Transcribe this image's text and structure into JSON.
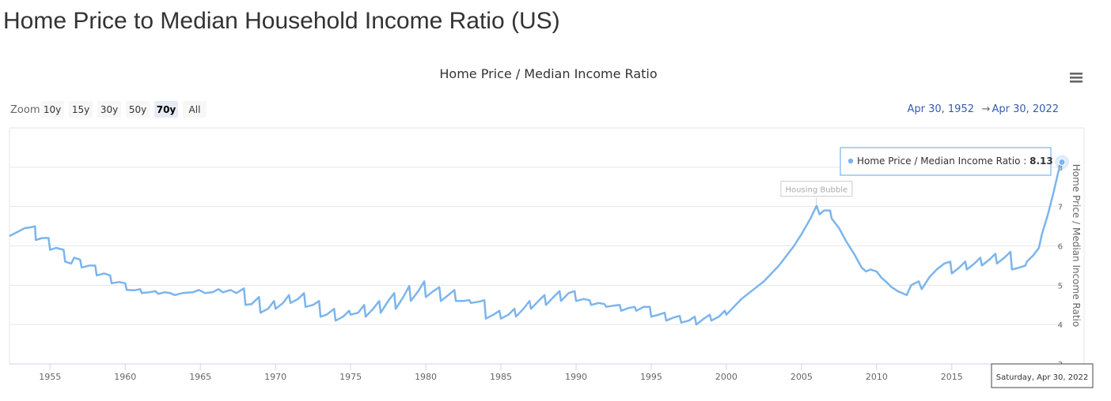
{
  "page": {
    "title": "Home Price to Median Household Income Ratio (US)"
  },
  "toolbar": {
    "zoom_label": "Zoom",
    "zoom_buttons": [
      "10y",
      "15y",
      "30y",
      "50y",
      "70y",
      "All"
    ],
    "selected_zoom": "70y",
    "range_from": "Apr 30, 1952",
    "range_arrow": "→",
    "range_to": "Apr 30, 2022",
    "menu_icon": "hamburger-menu-icon"
  },
  "tooltip": {
    "series_name": "Home Price / Median Income Ratio",
    "value": "8.13",
    "date_label": "Saturday, Apr 30, 2022"
  },
  "colors": {
    "line": "#7cb5ec",
    "range_text": "#335cad",
    "grid": "#e6e6e6"
  },
  "chart_data": {
    "type": "line",
    "title": "Home Price / Median Income Ratio",
    "ylabel": "Home Price / Median Income Ratio",
    "xlabel": "",
    "xlim": [
      1952.3,
      2022.33
    ],
    "ylim": [
      3,
      9
    ],
    "x_ticks": [
      1955,
      1960,
      1965,
      1970,
      1975,
      1980,
      1985,
      1990,
      1995,
      2000,
      2005,
      2010,
      2015
    ],
    "y_ticks": [
      3,
      4,
      5,
      6,
      7,
      8
    ],
    "grid": true,
    "legend": "none",
    "annotations": [
      {
        "text": "Housing Bubble",
        "x": 2006.0,
        "y": 7.02
      }
    ],
    "series": [
      {
        "name": "Home Price / Median Income Ratio",
        "points": [
          [
            1952.3,
            6.25
          ],
          [
            1952.8,
            6.35
          ],
          [
            1953.3,
            6.45
          ],
          [
            1953.8,
            6.48
          ],
          [
            1954.0,
            6.5
          ],
          [
            1954.05,
            6.15
          ],
          [
            1954.5,
            6.2
          ],
          [
            1954.9,
            6.2
          ],
          [
            1955.0,
            5.9
          ],
          [
            1955.4,
            5.95
          ],
          [
            1955.9,
            5.9
          ],
          [
            1956.0,
            5.6
          ],
          [
            1956.4,
            5.55
          ],
          [
            1956.6,
            5.7
          ],
          [
            1957.0,
            5.65
          ],
          [
            1957.1,
            5.45
          ],
          [
            1957.6,
            5.5
          ],
          [
            1958.0,
            5.5
          ],
          [
            1958.1,
            5.25
          ],
          [
            1958.6,
            5.3
          ],
          [
            1959.0,
            5.25
          ],
          [
            1959.1,
            5.05
          ],
          [
            1959.6,
            5.08
          ],
          [
            1960.0,
            5.05
          ],
          [
            1960.1,
            4.88
          ],
          [
            1960.6,
            4.87
          ],
          [
            1961.0,
            4.9
          ],
          [
            1961.1,
            4.8
          ],
          [
            1961.6,
            4.82
          ],
          [
            1962.0,
            4.85
          ],
          [
            1962.2,
            4.78
          ],
          [
            1962.6,
            4.82
          ],
          [
            1963.0,
            4.8
          ],
          [
            1963.3,
            4.75
          ],
          [
            1963.8,
            4.8
          ],
          [
            1964.5,
            4.82
          ],
          [
            1964.9,
            4.88
          ],
          [
            1965.3,
            4.8
          ],
          [
            1965.8,
            4.82
          ],
          [
            1966.2,
            4.9
          ],
          [
            1966.5,
            4.82
          ],
          [
            1967.0,
            4.88
          ],
          [
            1967.4,
            4.8
          ],
          [
            1967.9,
            4.92
          ],
          [
            1968.0,
            4.5
          ],
          [
            1968.4,
            4.52
          ],
          [
            1968.9,
            4.7
          ],
          [
            1969.0,
            4.3
          ],
          [
            1969.5,
            4.4
          ],
          [
            1969.9,
            4.6
          ],
          [
            1970.0,
            4.4
          ],
          [
            1970.5,
            4.55
          ],
          [
            1970.9,
            4.75
          ],
          [
            1971.0,
            4.55
          ],
          [
            1971.5,
            4.65
          ],
          [
            1971.9,
            4.8
          ],
          [
            1972.0,
            4.45
          ],
          [
            1972.5,
            4.5
          ],
          [
            1972.9,
            4.6
          ],
          [
            1973.0,
            4.2
          ],
          [
            1973.4,
            4.25
          ],
          [
            1973.9,
            4.4
          ],
          [
            1974.0,
            4.1
          ],
          [
            1974.5,
            4.2
          ],
          [
            1974.9,
            4.35
          ],
          [
            1975.0,
            4.25
          ],
          [
            1975.5,
            4.3
          ],
          [
            1975.9,
            4.5
          ],
          [
            1976.0,
            4.2
          ],
          [
            1976.5,
            4.4
          ],
          [
            1976.9,
            4.6
          ],
          [
            1977.0,
            4.3
          ],
          [
            1977.5,
            4.6
          ],
          [
            1977.9,
            4.8
          ],
          [
            1978.0,
            4.4
          ],
          [
            1978.5,
            4.7
          ],
          [
            1978.9,
            4.98
          ],
          [
            1979.0,
            4.6
          ],
          [
            1979.5,
            4.85
          ],
          [
            1979.9,
            5.1
          ],
          [
            1980.0,
            4.7
          ],
          [
            1980.5,
            4.85
          ],
          [
            1980.9,
            4.95
          ],
          [
            1981.0,
            4.6
          ],
          [
            1981.5,
            4.75
          ],
          [
            1981.9,
            4.88
          ],
          [
            1982.0,
            4.6
          ],
          [
            1982.5,
            4.6
          ],
          [
            1982.9,
            4.62
          ],
          [
            1983.0,
            4.55
          ],
          [
            1983.5,
            4.58
          ],
          [
            1983.9,
            4.62
          ],
          [
            1984.0,
            4.15
          ],
          [
            1984.5,
            4.25
          ],
          [
            1984.9,
            4.35
          ],
          [
            1985.0,
            4.15
          ],
          [
            1985.5,
            4.25
          ],
          [
            1985.9,
            4.4
          ],
          [
            1986.0,
            4.2
          ],
          [
            1986.5,
            4.4
          ],
          [
            1986.9,
            4.6
          ],
          [
            1987.0,
            4.4
          ],
          [
            1987.5,
            4.6
          ],
          [
            1987.9,
            4.75
          ],
          [
            1988.0,
            4.5
          ],
          [
            1988.5,
            4.7
          ],
          [
            1988.9,
            4.85
          ],
          [
            1989.0,
            4.6
          ],
          [
            1989.5,
            4.8
          ],
          [
            1989.9,
            4.85
          ],
          [
            1990.0,
            4.6
          ],
          [
            1990.5,
            4.65
          ],
          [
            1990.9,
            4.62
          ],
          [
            1991.0,
            4.5
          ],
          [
            1991.5,
            4.55
          ],
          [
            1991.9,
            4.52
          ],
          [
            1992.0,
            4.45
          ],
          [
            1992.5,
            4.48
          ],
          [
            1992.9,
            4.5
          ],
          [
            1993.0,
            4.35
          ],
          [
            1993.5,
            4.42
          ],
          [
            1993.9,
            4.45
          ],
          [
            1994.0,
            4.35
          ],
          [
            1994.5,
            4.45
          ],
          [
            1994.9,
            4.45
          ],
          [
            1995.0,
            4.2
          ],
          [
            1995.5,
            4.25
          ],
          [
            1995.9,
            4.3
          ],
          [
            1996.0,
            4.1
          ],
          [
            1996.5,
            4.18
          ],
          [
            1996.9,
            4.22
          ],
          [
            1997.0,
            4.05
          ],
          [
            1997.5,
            4.1
          ],
          [
            1997.9,
            4.2
          ],
          [
            1998.0,
            4.0
          ],
          [
            1998.5,
            4.15
          ],
          [
            1998.9,
            4.25
          ],
          [
            1999.0,
            4.1
          ],
          [
            1999.5,
            4.2
          ],
          [
            1999.9,
            4.35
          ],
          [
            2000.0,
            4.25
          ],
          [
            2000.5,
            4.45
          ],
          [
            2001.0,
            4.65
          ],
          [
            2001.5,
            4.8
          ],
          [
            2002.0,
            4.95
          ],
          [
            2002.5,
            5.1
          ],
          [
            2003.0,
            5.3
          ],
          [
            2003.5,
            5.5
          ],
          [
            2004.0,
            5.75
          ],
          [
            2004.5,
            6.0
          ],
          [
            2005.0,
            6.3
          ],
          [
            2005.3,
            6.5
          ],
          [
            2005.6,
            6.7
          ],
          [
            2006.0,
            7.02
          ],
          [
            2006.2,
            6.8
          ],
          [
            2006.5,
            6.9
          ],
          [
            2006.9,
            6.9
          ],
          [
            2007.0,
            6.7
          ],
          [
            2007.5,
            6.45
          ],
          [
            2008.0,
            6.1
          ],
          [
            2008.5,
            5.8
          ],
          [
            2009.0,
            5.45
          ],
          [
            2009.3,
            5.35
          ],
          [
            2009.6,
            5.4
          ],
          [
            2010.0,
            5.35
          ],
          [
            2010.3,
            5.2
          ],
          [
            2010.6,
            5.1
          ],
          [
            2011.0,
            4.95
          ],
          [
            2011.4,
            4.85
          ],
          [
            2012.0,
            4.75
          ],
          [
            2012.3,
            5.0
          ],
          [
            2012.8,
            5.1
          ],
          [
            2013.0,
            4.9
          ],
          [
            2013.5,
            5.2
          ],
          [
            2014.0,
            5.4
          ],
          [
            2014.5,
            5.55
          ],
          [
            2014.9,
            5.6
          ],
          [
            2015.0,
            5.3
          ],
          [
            2015.5,
            5.45
          ],
          [
            2015.9,
            5.6
          ],
          [
            2016.0,
            5.4
          ],
          [
            2016.5,
            5.55
          ],
          [
            2016.9,
            5.7
          ],
          [
            2017.0,
            5.5
          ],
          [
            2017.5,
            5.65
          ],
          [
            2017.9,
            5.8
          ],
          [
            2018.0,
            5.55
          ],
          [
            2018.5,
            5.7
          ],
          [
            2018.9,
            5.85
          ],
          [
            2019.0,
            5.4
          ],
          [
            2019.5,
            5.45
          ],
          [
            2019.9,
            5.5
          ],
          [
            2020.0,
            5.6
          ],
          [
            2020.4,
            5.75
          ],
          [
            2020.8,
            5.95
          ],
          [
            2021.0,
            6.3
          ],
          [
            2021.4,
            6.8
          ],
          [
            2021.8,
            7.4
          ],
          [
            2022.1,
            7.9
          ],
          [
            2022.33,
            8.13
          ]
        ]
      }
    ]
  }
}
